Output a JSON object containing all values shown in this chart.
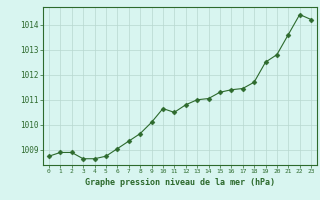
{
  "hours": [
    0,
    1,
    2,
    3,
    4,
    5,
    6,
    7,
    8,
    9,
    10,
    11,
    12,
    13,
    14,
    15,
    16,
    17,
    18,
    19,
    20,
    21,
    22,
    23
  ],
  "pressure": [
    1008.75,
    1008.9,
    1008.9,
    1008.65,
    1008.65,
    1008.75,
    1009.05,
    1009.35,
    1009.65,
    1010.1,
    1010.65,
    1010.5,
    1010.8,
    1011.0,
    1011.05,
    1011.3,
    1011.4,
    1011.45,
    1011.7,
    1012.5,
    1012.8,
    1013.6,
    1014.4,
    1014.2
  ],
  "line_color": "#2d6a2d",
  "marker_color": "#2d6a2d",
  "bg_color": "#d8f5f0",
  "grid_color": "#b8d8d0",
  "border_color": "#2d6a2d",
  "xlabel": "Graphe pression niveau de la mer (hPa)",
  "xlabel_color": "#2d6a2d",
  "tick_color": "#2d6a2d",
  "ylim_min": 1008.4,
  "ylim_max": 1014.7,
  "yticks": [
    1009,
    1010,
    1011,
    1012,
    1013,
    1014
  ],
  "xticks": [
    0,
    1,
    2,
    3,
    4,
    5,
    6,
    7,
    8,
    9,
    10,
    11,
    12,
    13,
    14,
    15,
    16,
    17,
    18,
    19,
    20,
    21,
    22,
    23
  ]
}
